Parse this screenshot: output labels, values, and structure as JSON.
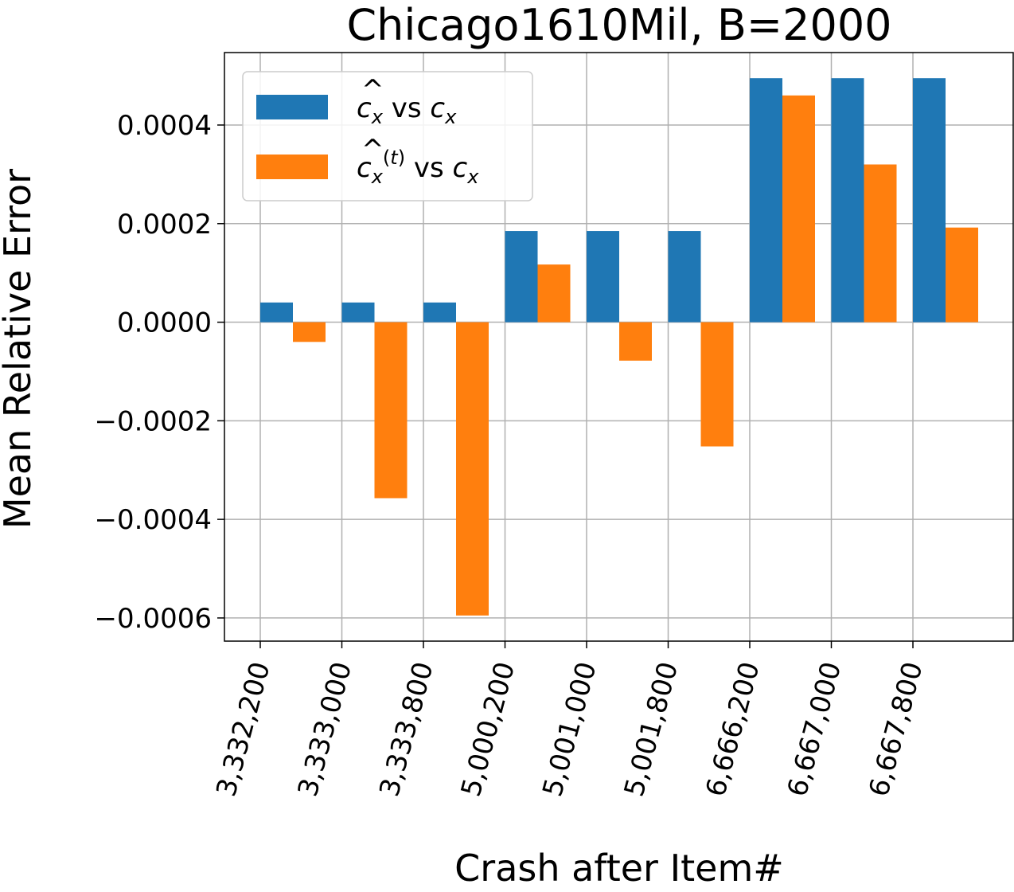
{
  "chart_data": {
    "type": "bar",
    "title": "Chicago1610Mil, B=2000",
    "xlabel": "Crash after Item#",
    "ylabel": "Mean Relative Error",
    "categories": [
      "3,332,200",
      "3,333,000",
      "3,333,800",
      "5,000,200",
      "5,001,000",
      "5,001,800",
      "6,666,200",
      "6,667,000",
      "6,667,800"
    ],
    "series": [
      {
        "name": "ĉx vs cx",
        "color": "#1f77b4",
        "values": [
          4e-05,
          4e-05,
          4e-05,
          0.000185,
          0.000185,
          0.000185,
          0.000495,
          0.000495,
          0.000495
        ]
      },
      {
        "name": "ĉx(t) vs cx",
        "color": "#ff7f0e",
        "values": [
          -4e-05,
          -0.000357,
          -0.000595,
          0.000117,
          -7.8e-05,
          -0.000252,
          0.00046,
          0.00032,
          0.000192
        ]
      }
    ],
    "yticks": [
      -0.0006,
      -0.0004,
      -0.0002,
      0.0,
      0.0002,
      0.0004
    ],
    "ytick_labels": [
      "−0.0006",
      "−0.0004",
      "−0.0002",
      "0.0000",
      "0.0002",
      "0.0004"
    ],
    "ylim": [
      -0.000647,
      0.000547
    ],
    "grid": true,
    "legend_position": "top-left"
  }
}
